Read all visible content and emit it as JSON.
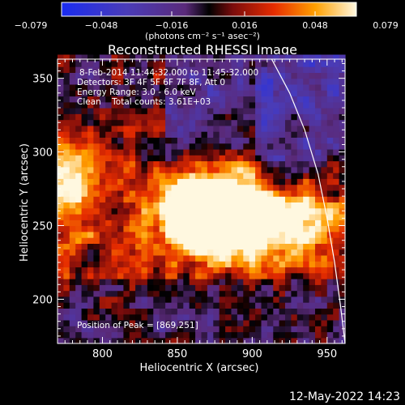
{
  "colorbar": {
    "ticks": [
      "−0.079",
      "−0.048",
      "−0.016",
      "0.016",
      "0.048",
      "0.079"
    ],
    "units_line": "(photons cm⁻² s⁻¹ asec⁻²)",
    "min": -0.079,
    "max": 0.079
  },
  "chart_data": {
    "type": "heatmap",
    "title": "Reconstructed RHESSI Image",
    "xlabel": "Heliocentric X (arcsec)",
    "ylabel": "Heliocentric Y (arcsec)",
    "xlim": [
      770,
      962
    ],
    "ylim": [
      170,
      363
    ],
    "xticks": [
      800,
      850,
      900,
      950
    ],
    "yticks": [
      200,
      250,
      300,
      350
    ],
    "peak": [
      869,
      251
    ],
    "limb_curve": [
      [
        913,
        363
      ],
      [
        925,
        340
      ],
      [
        935,
        315
      ],
      [
        944,
        285
      ],
      [
        950,
        255
      ],
      [
        955,
        225
      ],
      [
        959,
        195
      ],
      [
        962,
        170
      ]
    ],
    "bright_sources": [
      {
        "x": 868,
        "y": 252,
        "value": 0.075
      },
      {
        "x": 880,
        "y": 256,
        "value": 0.06
      },
      {
        "x": 905,
        "y": 245,
        "value": 0.058
      },
      {
        "x": 855,
        "y": 263,
        "value": 0.05
      },
      {
        "x": 895,
        "y": 268,
        "value": 0.045
      },
      {
        "x": 780,
        "y": 284,
        "value": 0.05
      },
      {
        "x": 940,
        "y": 250,
        "value": 0.045
      }
    ],
    "annotations": {
      "line1": "8-Feb-2014 11:44:32.000 to 11:45:32.000",
      "line2": "Detectors: 3F 4F 5F 6F 7F 8F, Att 0",
      "line3": "Energy Range: 3.0 - 6.0 keV",
      "line4": "Clean    Total counts: 3.61E+03",
      "peak_label": "Position of Peak = [869,251]"
    }
  },
  "footer": {
    "timestamp": "12-May-2022 14:23"
  }
}
